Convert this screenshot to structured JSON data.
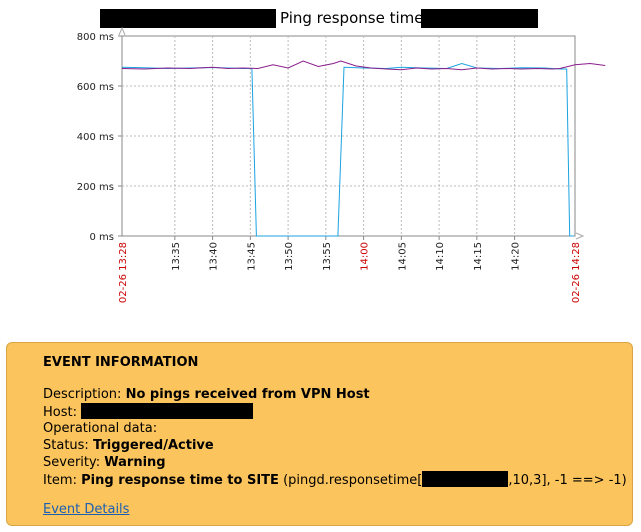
{
  "graph": {
    "title": "Ping response time",
    "y_ticks": [
      "800 ms",
      "600 ms",
      "400 ms",
      "200 ms",
      "0 ms"
    ],
    "x_start_label": "02-26 13:28",
    "x_end_label": "02-26 14:28",
    "x_tick_labels": [
      "13:35",
      "13:40",
      "13:45",
      "13:50",
      "13:55",
      "14:00",
      "14:05",
      "14:10",
      "14:15",
      "14:20"
    ],
    "colors": {
      "series_blue": "#1ba3e0",
      "series_purple": "#8a1e8c",
      "highlight_red": "#cc0000",
      "grid": "#bbbbbb"
    }
  },
  "chart_data": {
    "type": "line",
    "title": "Ping response time",
    "xlabel": "",
    "ylabel": "",
    "ylim": [
      0,
      800
    ],
    "x_range": [
      "13:28",
      "14:28"
    ],
    "grid": true,
    "series": [
      {
        "values": [
          [
            0,
            675
          ],
          [
            3,
            673
          ],
          [
            6,
            670
          ],
          [
            9,
            672
          ],
          [
            12,
            674
          ],
          [
            14,
            672
          ],
          [
            16,
            670
          ],
          [
            17.2,
            670
          ],
          [
            17.8,
            0
          ],
          [
            18.6,
            0
          ],
          [
            26,
            0
          ],
          [
            28.6,
            0
          ],
          [
            29.4,
            675
          ],
          [
            32,
            672
          ],
          [
            35,
            670
          ],
          [
            37,
            675
          ],
          [
            40,
            672
          ],
          [
            43,
            670
          ],
          [
            45,
            690
          ],
          [
            47,
            672
          ],
          [
            50,
            670
          ],
          [
            53,
            673
          ],
          [
            56,
            672
          ],
          [
            58,
            668
          ],
          [
            58.9,
            668
          ],
          [
            59.3,
            0
          ],
          [
            59.8,
            0
          ],
          [
            59.3,
            0
          ]
        ]
      },
      {
        "values": [
          [
            0,
            670
          ],
          [
            3,
            668
          ],
          [
            6,
            672
          ],
          [
            9,
            670
          ],
          [
            12,
            675
          ],
          [
            14,
            670
          ],
          [
            16,
            672
          ],
          [
            18,
            670
          ],
          [
            20,
            685
          ],
          [
            22,
            672
          ],
          [
            24,
            700
          ],
          [
            26,
            678
          ],
          [
            28,
            690
          ],
          [
            29,
            700
          ],
          [
            31,
            680
          ],
          [
            33,
            672
          ],
          [
            35,
            668
          ],
          [
            37,
            665
          ],
          [
            39,
            672
          ],
          [
            41,
            668
          ],
          [
            43,
            670
          ],
          [
            45,
            665
          ],
          [
            47,
            672
          ],
          [
            49,
            668
          ],
          [
            51,
            670
          ],
          [
            53,
            668
          ],
          [
            55,
            670
          ],
          [
            57,
            668
          ],
          [
            58,
            670
          ],
          [
            60,
            685
          ],
          [
            62,
            690
          ],
          [
            64,
            682
          ]
        ]
      }
    ]
  },
  "event": {
    "heading": "EVENT INFORMATION",
    "description_label": "Description:",
    "description_value": "No pings received from VPN Host",
    "host_label": "Host:",
    "operational_label": "Operational data:",
    "status_label": "Status:",
    "status_value": "Triggered/Active",
    "severity_label": "Severity:",
    "severity_value": "Warning",
    "item_label": "Item:",
    "item_value": "Ping response time to SITE",
    "item_key_prefix": "(pingd.responsetime[",
    "item_key_suffix": ",10,3], -1 ==> -1)",
    "details_link": "Event Details"
  }
}
